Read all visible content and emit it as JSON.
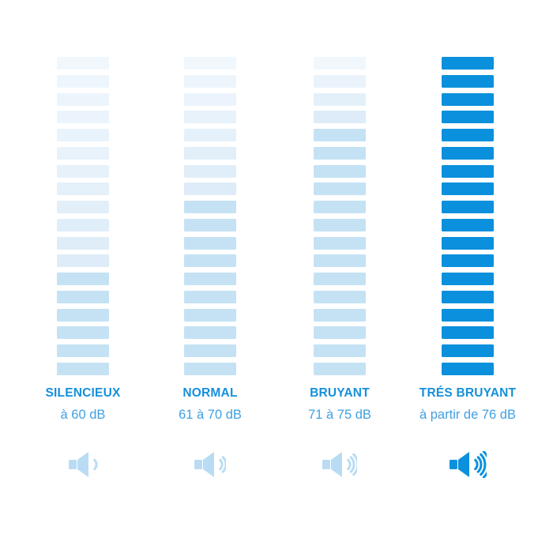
{
  "page": {
    "background": "#ffffff"
  },
  "colors": {
    "accent_blue": "#0a90dc",
    "label_text": "#1590dc",
    "range_text": "#40a0e1",
    "active_light": "#c5e2f5",
    "inactive_top": "#f0f7fd",
    "inactive_bottom": "#ddecf8",
    "icon_light": "#b9dcf4"
  },
  "chart_data": {
    "type": "bar",
    "title": "",
    "segments_per_column": 18,
    "categories": [
      "SILENCIEUX",
      "NORMAL",
      "BRUYANT",
      "TRÉS BRUYANT"
    ],
    "ranges": [
      "à 60 dB",
      "61 à 70 dB",
      "71 à 75 dB",
      "à partir de 76 dB"
    ],
    "active_segments": [
      6,
      10,
      14,
      18
    ],
    "speaker_waves": [
      1,
      2,
      3,
      4
    ],
    "ylim": [
      0,
      18
    ],
    "legend": "none",
    "columns": [
      {
        "label": "SILENCIEUX",
        "range": "à 60 dB",
        "active_segments": 6,
        "speaker_waves": 1,
        "emphasis": false
      },
      {
        "label": "NORMAL",
        "range": "61 à 70 dB",
        "active_segments": 10,
        "speaker_waves": 2,
        "emphasis": false
      },
      {
        "label": "BRUYANT",
        "range": "71 à 75 dB",
        "active_segments": 14,
        "speaker_waves": 3,
        "emphasis": false
      },
      {
        "label": "TRÉS BRUYANT",
        "range": "à partir de 76 dB",
        "active_segments": 18,
        "speaker_waves": 4,
        "emphasis": true
      }
    ]
  }
}
